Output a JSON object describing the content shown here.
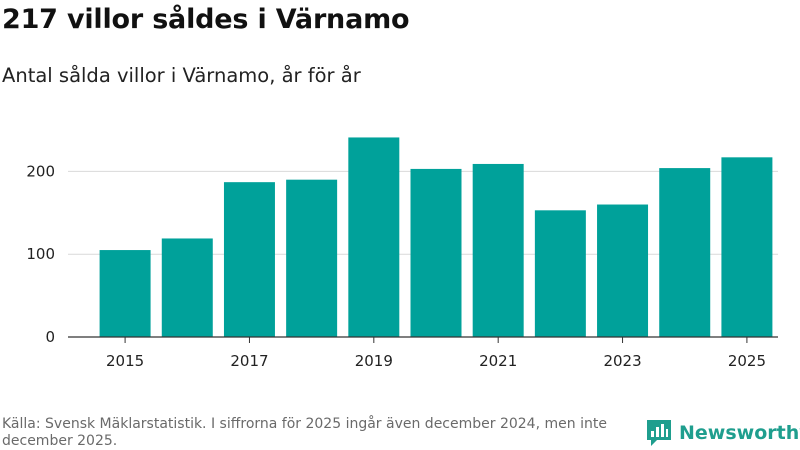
{
  "title": "217 villor såldes i Värnamo",
  "subtitle": "Antal sålda villor i Värnamo, år för år",
  "footer": "Källa: Svensk Mäklarstatistik. I siffrorna för 2025 ingår även december 2024, men inte december 2025.",
  "brand": {
    "name": "Newsworthy",
    "icon": "bar-chart-logo-icon",
    "color": "#1f9e8e"
  },
  "colors": {
    "bar": "#00a19a",
    "grid": "#d9d9d9",
    "axis": "#333333"
  },
  "chart_data": {
    "type": "bar",
    "title": "217 villor såldes i Värnamo",
    "xlabel": "",
    "ylabel": "",
    "categories": [
      "2015",
      "2016",
      "2017",
      "2018",
      "2019",
      "2020",
      "2021",
      "2022",
      "2023",
      "2024",
      "2025"
    ],
    "values": [
      105,
      119,
      187,
      190,
      241,
      203,
      209,
      153,
      160,
      204,
      217
    ],
    "x_tick_labels": [
      "2015",
      "2017",
      "2019",
      "2021",
      "2023",
      "2025"
    ],
    "y_ticks": [
      0,
      100,
      200
    ],
    "ylim": [
      0,
      250
    ],
    "grid": true
  }
}
